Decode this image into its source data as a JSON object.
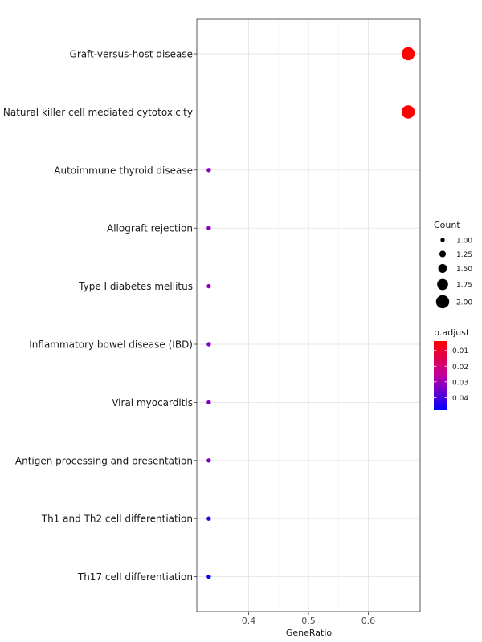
{
  "chart_data": {
    "type": "scatter",
    "xlabel": "GeneRatio",
    "ylabel": "",
    "xlim": [
      0.3133,
      0.6867
    ],
    "x_ticks": [
      0.4,
      0.5,
      0.6
    ],
    "x_tick_labels": [
      "0.4",
      "0.5",
      "0.6"
    ],
    "grid": true,
    "legend_position": "right",
    "categories": [
      "Graft-versus-host disease",
      "Natural killer cell mediated cytotoxicity",
      "Autoimmune thyroid disease",
      "Allograft rejection",
      "Type I diabetes mellitus",
      "Inflammatory bowel disease (IBD)",
      "Viral myocarditis",
      "Antigen processing and presentation",
      "Th1 and Th2 cell differentiation",
      "Th17 cell differentiation"
    ],
    "points": [
      {
        "category": "Graft-versus-host disease",
        "gene_ratio": 0.6667,
        "count": 2,
        "p_adjust": 0.004
      },
      {
        "category": "Natural killer cell mediated cytotoxicity",
        "gene_ratio": 0.6667,
        "count": 2,
        "p_adjust": 0.004
      },
      {
        "category": "Autoimmune thyroid disease",
        "gene_ratio": 0.3333,
        "count": 1,
        "p_adjust": 0.032
      },
      {
        "category": "Allograft rejection",
        "gene_ratio": 0.3333,
        "count": 1,
        "p_adjust": 0.032
      },
      {
        "category": "Type I diabetes mellitus",
        "gene_ratio": 0.3333,
        "count": 1,
        "p_adjust": 0.032
      },
      {
        "category": "Inflammatory bowel disease (IBD)",
        "gene_ratio": 0.3333,
        "count": 1,
        "p_adjust": 0.033
      },
      {
        "category": "Viral myocarditis",
        "gene_ratio": 0.3333,
        "count": 1,
        "p_adjust": 0.033
      },
      {
        "category": "Antigen processing and presentation",
        "gene_ratio": 0.3333,
        "count": 1,
        "p_adjust": 0.034
      },
      {
        "category": "Th1 and Th2 cell differentiation",
        "gene_ratio": 0.3333,
        "count": 1,
        "p_adjust": 0.042
      },
      {
        "category": "Th17 cell differentiation",
        "gene_ratio": 0.3333,
        "count": 1,
        "p_adjust": 0.047
      }
    ],
    "size_legend": {
      "title": "Count",
      "values": [
        1.0,
        1.25,
        1.5,
        1.75,
        2.0
      ],
      "labels": [
        "1.00",
        "1.25",
        "1.50",
        "1.75",
        "2.00"
      ]
    },
    "color_legend": {
      "title": "p.adjust",
      "range": [
        0.004,
        0.048
      ],
      "ticks": [
        0.01,
        0.02,
        0.03,
        0.04
      ],
      "tick_labels": [
        "0.01",
        "0.02",
        "0.03",
        "0.04"
      ],
      "low_color": "#FF0000",
      "high_color": "#0000FF"
    }
  }
}
